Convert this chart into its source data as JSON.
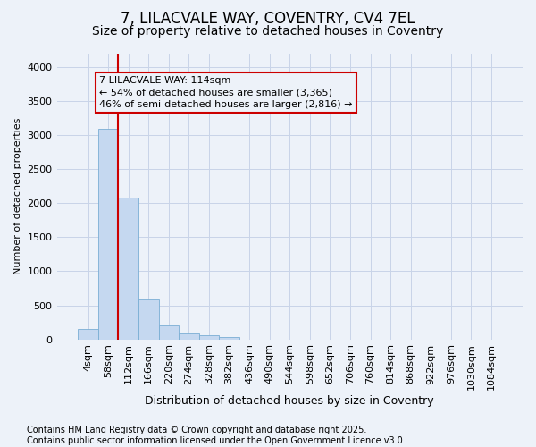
{
  "title_line1": "7, LILACVALE WAY, COVENTRY, CV4 7EL",
  "title_line2": "Size of property relative to detached houses in Coventry",
  "xlabel": "Distribution of detached houses by size in Coventry",
  "ylabel": "Number of detached properties",
  "categories": [
    "4sqm",
    "58sqm",
    "112sqm",
    "166sqm",
    "220sqm",
    "274sqm",
    "328sqm",
    "382sqm",
    "436sqm",
    "490sqm",
    "544sqm",
    "598sqm",
    "652sqm",
    "706sqm",
    "760sqm",
    "814sqm",
    "868sqm",
    "922sqm",
    "976sqm",
    "1030sqm",
    "1084sqm"
  ],
  "values": [
    150,
    3100,
    2080,
    580,
    200,
    80,
    55,
    35,
    0,
    0,
    0,
    0,
    0,
    0,
    0,
    0,
    0,
    0,
    0,
    0,
    0
  ],
  "bar_color": "#c5d8f0",
  "bar_edge_color": "#7aaed4",
  "grid_color": "#c8d4e8",
  "background_color": "#edf2f9",
  "plot_bg_color": "#edf2f9",
  "vline_color": "#cc0000",
  "vline_x_index": 1.5,
  "annotation_text": "7 LILACVALE WAY: 114sqm\n← 54% of detached houses are smaller (3,365)\n46% of semi-detached houses are larger (2,816) →",
  "footer_line1": "Contains HM Land Registry data © Crown copyright and database right 2025.",
  "footer_line2": "Contains public sector information licensed under the Open Government Licence v3.0.",
  "ylim": [
    0,
    4200
  ],
  "yticks": [
    0,
    500,
    1000,
    1500,
    2000,
    2500,
    3000,
    3500,
    4000
  ],
  "title_fontsize": 12,
  "subtitle_fontsize": 10,
  "xlabel_fontsize": 9,
  "ylabel_fontsize": 8,
  "tick_fontsize": 8,
  "footer_fontsize": 7,
  "annotation_fontsize": 8
}
